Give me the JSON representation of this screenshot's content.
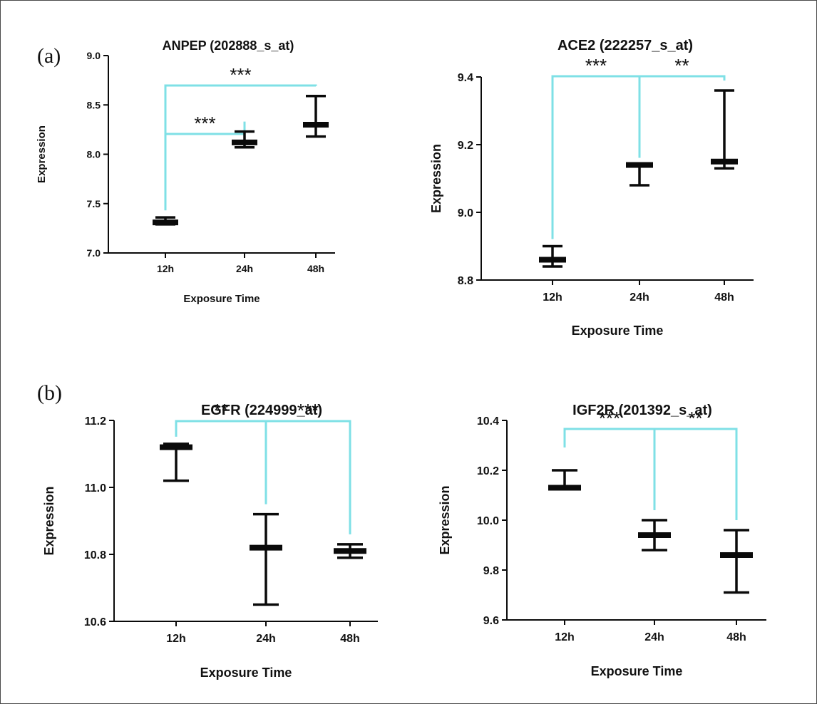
{
  "panel_labels": [
    "(a)",
    "(b)"
  ],
  "colors": {
    "bracket": "#7fe0e6",
    "mark": "#0a0a0a",
    "text": "#111111"
  },
  "chart_data": [
    {
      "type": "box",
      "title": "ANPEP (202888_s_at)",
      "xlabel": "Exposure Time",
      "ylabel": "Expression",
      "categories": [
        "12h",
        "24h",
        "48h"
      ],
      "ylim": [
        7.0,
        9.0
      ],
      "yticks": [
        "7.0",
        "7.5",
        "8.0",
        "8.5",
        "9.0"
      ],
      "ytick_values": [
        7.0,
        7.5,
        8.0,
        8.5,
        9.0
      ],
      "series": [
        {
          "median": [
            7.31,
            8.12,
            8.3
          ],
          "min": [
            7.29,
            8.07,
            8.18
          ],
          "max": [
            7.36,
            8.23,
            8.59
          ]
        }
      ],
      "significance": [
        {
          "from": "12h",
          "to": "48h",
          "label": "***"
        },
        {
          "from": "12h",
          "to": "24h",
          "label": "***"
        }
      ]
    },
    {
      "type": "box",
      "title": "ACE2 (222257_s_at)",
      "xlabel": "Exposure Time",
      "ylabel": "Expression",
      "categories": [
        "12h",
        "24h",
        "48h"
      ],
      "ylim": [
        8.8,
        9.4
      ],
      "yticks": [
        "8.8",
        "9.0",
        "9.2",
        "9.4"
      ],
      "ytick_values": [
        8.8,
        9.0,
        9.2,
        9.4
      ],
      "series": [
        {
          "median": [
            8.86,
            9.14,
            9.15
          ],
          "min": [
            8.84,
            9.08,
            9.13
          ],
          "max": [
            8.9,
            9.14,
            9.36
          ]
        }
      ],
      "significance": [
        {
          "from": "12h",
          "to": "24h",
          "label": "***"
        },
        {
          "from": "24h",
          "to": "48h",
          "label": "**"
        }
      ]
    },
    {
      "type": "box",
      "title": "EGFR (224999_at)",
      "xlabel": "Exposure Time",
      "ylabel": "Expression",
      "categories": [
        "12h",
        "24h",
        "48h"
      ],
      "ylim": [
        10.6,
        11.2
      ],
      "yticks": [
        "10.6",
        "10.8",
        "11.0",
        "11.2"
      ],
      "ytick_values": [
        10.6,
        10.8,
        11.0,
        11.2
      ],
      "series": [
        {
          "median": [
            11.12,
            10.82,
            10.81
          ],
          "min": [
            11.02,
            10.65,
            10.79
          ],
          "max": [
            11.13,
            10.92,
            10.83
          ]
        }
      ],
      "significance": [
        {
          "from": "12h",
          "to": "24h",
          "label": "**"
        },
        {
          "from": "24h",
          "to": "48h",
          "label": "***"
        }
      ]
    },
    {
      "type": "box",
      "title": "IGF2R (201392_s_at)",
      "xlabel": "Exposure Time",
      "ylabel": "Expression",
      "categories": [
        "12h",
        "24h",
        "48h"
      ],
      "ylim": [
        9.6,
        10.4
      ],
      "yticks": [
        "9.6",
        "9.8",
        "10.0",
        "10.2",
        "10.4"
      ],
      "ytick_values": [
        9.6,
        9.8,
        10.0,
        10.2,
        10.4
      ],
      "series": [
        {
          "median": [
            10.13,
            9.94,
            9.86
          ],
          "min": [
            10.13,
            9.88,
            9.71
          ],
          "max": [
            10.2,
            10.0,
            9.96
          ]
        }
      ],
      "significance": [
        {
          "from": "12h",
          "to": "24h",
          "label": "***"
        },
        {
          "from": "24h",
          "to": "48h",
          "label": "**"
        }
      ]
    }
  ]
}
